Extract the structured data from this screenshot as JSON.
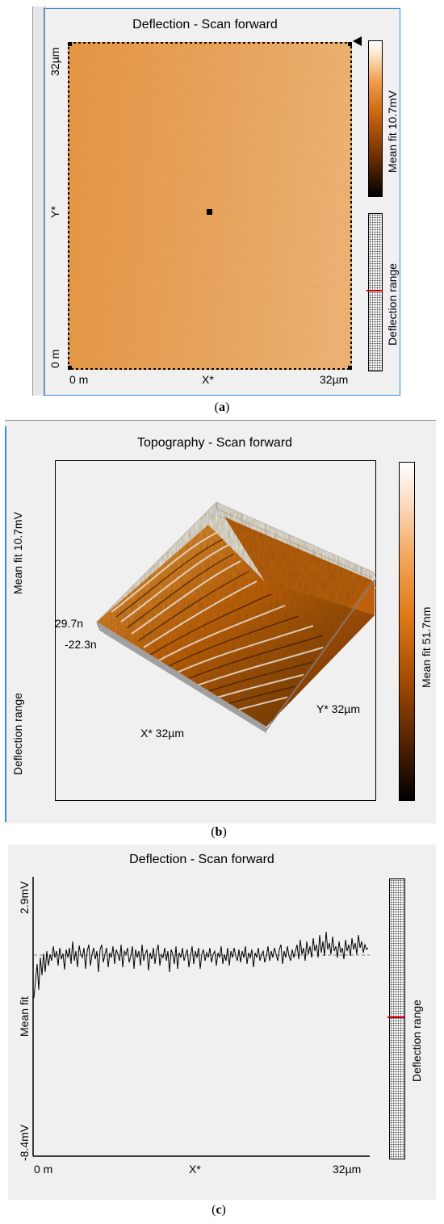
{
  "panel_a": {
    "title": "Deflection - Scan forward",
    "axis": {
      "y_top": "32µm",
      "y_mid": "Y*",
      "y_bottom": "0 m",
      "x_left": "0 m",
      "x_mid": "X*",
      "x_right": "32µm"
    },
    "colorbar_label": "Mean fit 10.7mV",
    "range_label": "Deflection range",
    "caption_letter": "a"
  },
  "panel_b": {
    "title": "Topography - Scan forward",
    "left_label_top": "Mean fit 10.7mV",
    "left_label_bottom": "Deflection range",
    "z_top": "29.7n",
    "z_bottom": "-22.3n",
    "x_axis": "X* 32µm",
    "y_axis": "Y* 32µm",
    "colorbar_label": "Mean fit 51.7nm",
    "caption_letter": "b"
  },
  "panel_c": {
    "title": "Deflection - Scan forward",
    "y_top": "2.9mV",
    "y_mid": "Mean fit",
    "y_bottom": "-8.4mV",
    "x_left": "0 m",
    "x_mid": "X*",
    "x_right": "32µm",
    "range_label": "Deflection range",
    "caption_letter": "c"
  },
  "colors": {
    "orange": "#f0a050",
    "accent_blue": "#3c8ad8",
    "panel_bg": "#f0f0f0"
  }
}
